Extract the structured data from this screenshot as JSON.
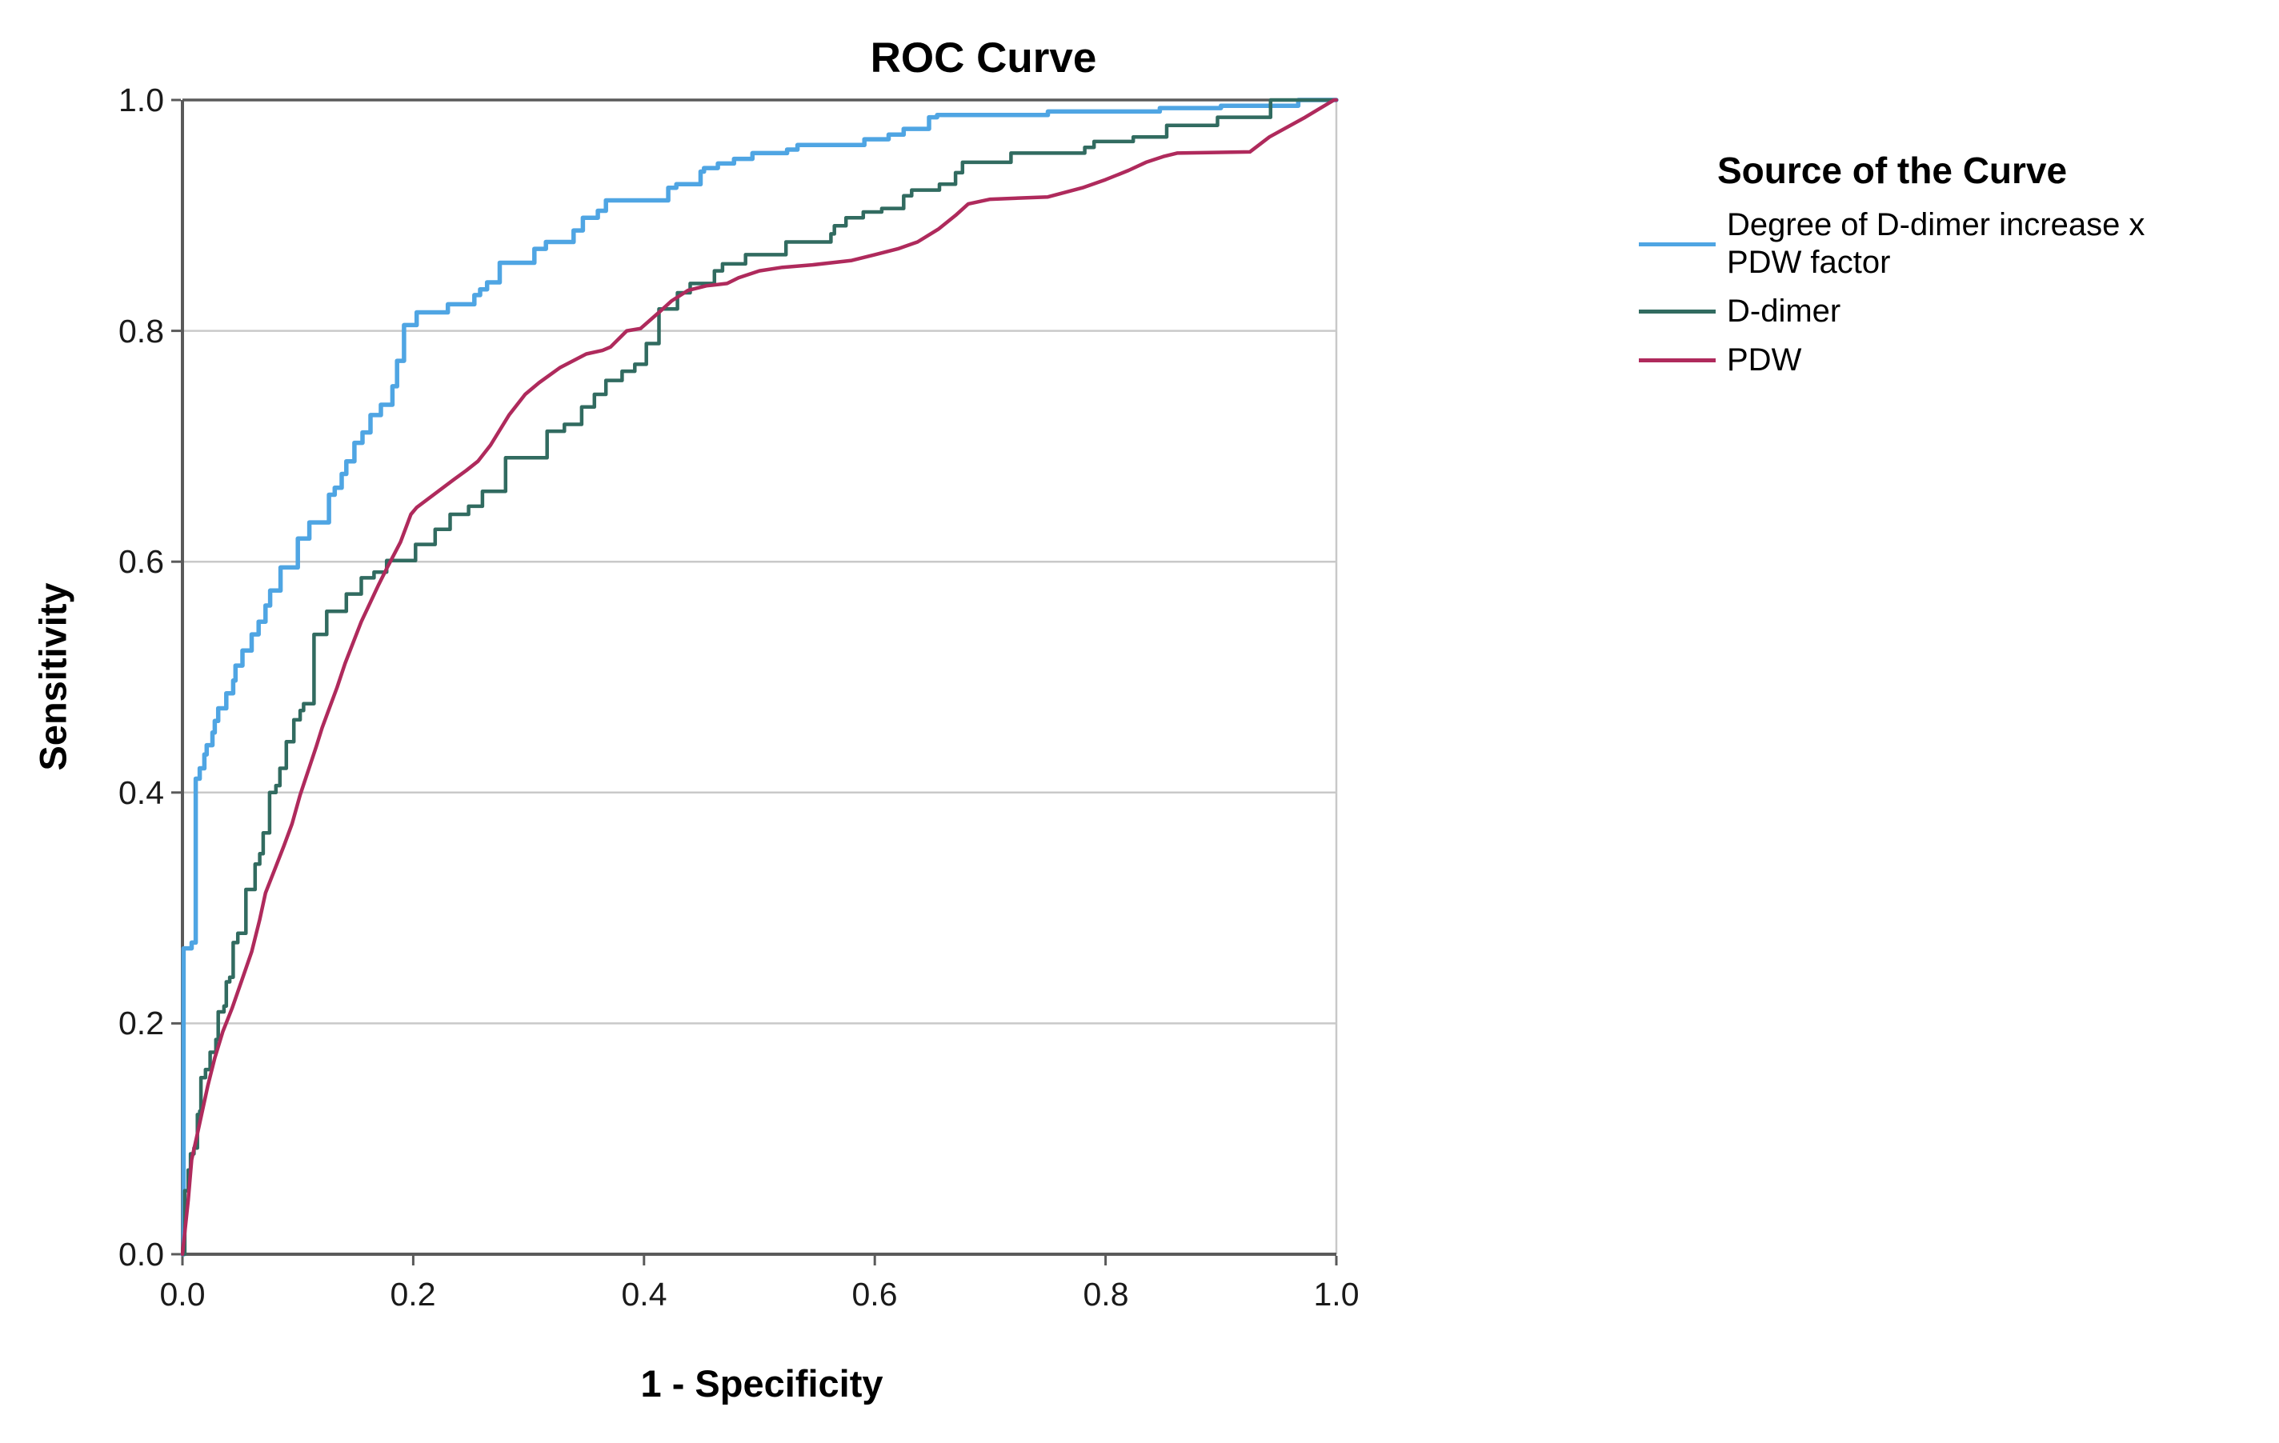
{
  "chart": {
    "title": "ROC Curve"
  },
  "axes": {
    "x": {
      "label": "1 - Specificity",
      "ticks": [
        "0.0",
        "0.2",
        "0.4",
        "0.6",
        "0.8",
        "1.0"
      ],
      "range": [
        0,
        1
      ]
    },
    "y": {
      "label": "Sensitivity",
      "ticks": [
        "0.0",
        "0.2",
        "0.4",
        "0.6",
        "0.8",
        "1.0"
      ],
      "range": [
        0,
        1
      ]
    }
  },
  "legend": {
    "title": "Source of the Curve",
    "items": [
      {
        "key": "degree-of-d-dimer-increase-x-pdw-factor",
        "label": "Degree of D-dimer increase x PDW factor",
        "label_lines": [
          "Degree of D-dimer increase x",
          "PDW factor"
        ],
        "color": "#4FA5E3"
      },
      {
        "key": "d-dimer",
        "label": "D-dimer",
        "label_lines": [
          "D-dimer"
        ],
        "color": "#316B60"
      },
      {
        "key": "pdw",
        "label": "PDW",
        "label_lines": [
          "PDW"
        ],
        "color": "#AF2A5C"
      }
    ]
  },
  "chart_data": {
    "type": "line",
    "subtype": "roc-curve",
    "title": "ROC Curve",
    "xlabel": "1 - Specificity",
    "ylabel": "Sensitivity",
    "xlim": [
      0,
      1
    ],
    "ylim": [
      0,
      1
    ],
    "grid": "horizontal-only",
    "grid_values": [
      0.2,
      0.4,
      0.6,
      0.8
    ],
    "legend_position": "right",
    "style": {
      "axis_color": "#5a5a5a",
      "grid_color": "#c9c9c9",
      "background": "#ffffff"
    },
    "series": [
      {
        "name": "Degree of D-dimer increase x PDW factor",
        "color": "#4FA5E3",
        "draw": "step",
        "stroke_width": 5.5,
        "points": [
          [
            0,
            0
          ],
          [
            0.001,
            0.265
          ],
          [
            0.008,
            0.27
          ],
          [
            0.0115,
            0.412
          ],
          [
            0.015,
            0.421
          ],
          [
            0.019,
            0.433
          ],
          [
            0.021,
            0.441
          ],
          [
            0.026,
            0.452
          ],
          [
            0.028,
            0.462
          ],
          [
            0.031,
            0.473
          ],
          [
            0.038,
            0.486
          ],
          [
            0.044,
            0.497
          ],
          [
            0.046,
            0.51
          ],
          [
            0.052,
            0.523
          ],
          [
            0.06,
            0.537
          ],
          [
            0.066,
            0.548
          ],
          [
            0.072,
            0.562
          ],
          [
            0.076,
            0.575
          ],
          [
            0.085,
            0.595
          ],
          [
            0.1,
            0.62
          ],
          [
            0.11,
            0.634
          ],
          [
            0.127,
            0.658
          ],
          [
            0.132,
            0.664
          ],
          [
            0.138,
            0.676
          ],
          [
            0.142,
            0.687
          ],
          [
            0.149,
            0.703
          ],
          [
            0.156,
            0.712
          ],
          [
            0.163,
            0.727
          ],
          [
            0.172,
            0.736
          ],
          [
            0.182,
            0.752
          ],
          [
            0.186,
            0.774
          ],
          [
            0.192,
            0.805
          ],
          [
            0.203,
            0.816
          ],
          [
            0.23,
            0.823
          ],
          [
            0.253,
            0.831
          ],
          [
            0.258,
            0.836
          ],
          [
            0.264,
            0.842
          ],
          [
            0.275,
            0.859
          ],
          [
            0.305,
            0.871
          ],
          [
            0.315,
            0.877
          ],
          [
            0.339,
            0.887
          ],
          [
            0.347,
            0.898
          ],
          [
            0.36,
            0.904
          ],
          [
            0.367,
            0.913
          ],
          [
            0.421,
            0.924
          ],
          [
            0.428,
            0.927
          ],
          [
            0.449,
            0.938
          ],
          [
            0.452,
            0.941
          ],
          [
            0.464,
            0.945
          ],
          [
            0.478,
            0.949
          ],
          [
            0.494,
            0.954
          ],
          [
            0.524,
            0.957
          ],
          [
            0.533,
            0.961
          ],
          [
            0.591,
            0.966
          ],
          [
            0.612,
            0.97
          ],
          [
            0.625,
            0.975
          ],
          [
            0.647,
            0.985
          ],
          [
            0.654,
            0.987
          ],
          [
            0.75,
            0.99
          ],
          [
            0.847,
            0.993
          ],
          [
            0.9,
            0.995
          ],
          [
            0.967,
            1
          ],
          [
            1,
            1
          ]
        ]
      },
      {
        "name": "D-dimer",
        "color": "#316B60",
        "draw": "step",
        "stroke_width": 4.5,
        "points": [
          [
            0,
            0
          ],
          [
            0.002,
            0.055
          ],
          [
            0.005,
            0.073
          ],
          [
            0.007,
            0.087
          ],
          [
            0.01,
            0.092
          ],
          [
            0.013,
            0.121
          ],
          [
            0.015,
            0.124
          ],
          [
            0.016,
            0.153
          ],
          [
            0.02,
            0.16
          ],
          [
            0.024,
            0.175
          ],
          [
            0.029,
            0.186
          ],
          [
            0.031,
            0.21
          ],
          [
            0.036,
            0.215
          ],
          [
            0.038,
            0.236
          ],
          [
            0.041,
            0.24
          ],
          [
            0.044,
            0.27
          ],
          [
            0.048,
            0.278
          ],
          [
            0.055,
            0.316
          ],
          [
            0.063,
            0.338
          ],
          [
            0.067,
            0.347
          ],
          [
            0.07,
            0.365
          ],
          [
            0.0755,
            0.4
          ],
          [
            0.081,
            0.406
          ],
          [
            0.0845,
            0.421
          ],
          [
            0.09,
            0.444
          ],
          [
            0.0965,
            0.463
          ],
          [
            0.102,
            0.471
          ],
          [
            0.105,
            0.477
          ],
          [
            0.114,
            0.537
          ],
          [
            0.125,
            0.557
          ],
          [
            0.142,
            0.572
          ],
          [
            0.155,
            0.586
          ],
          [
            0.166,
            0.591
          ],
          [
            0.177,
            0.601
          ],
          [
            0.202,
            0.615
          ],
          [
            0.219,
            0.628
          ],
          [
            0.232,
            0.641
          ],
          [
            0.248,
            0.648
          ],
          [
            0.26,
            0.661
          ],
          [
            0.28,
            0.69
          ],
          [
            0.316,
            0.713
          ],
          [
            0.331,
            0.719
          ],
          [
            0.346,
            0.734
          ],
          [
            0.357,
            0.745
          ],
          [
            0.367,
            0.757
          ],
          [
            0.381,
            0.765
          ],
          [
            0.392,
            0.771
          ],
          [
            0.402,
            0.789
          ],
          [
            0.413,
            0.819
          ],
          [
            0.429,
            0.833
          ],
          [
            0.44,
            0.841
          ],
          [
            0.461,
            0.852
          ],
          [
            0.468,
            0.858
          ],
          [
            0.488,
            0.866
          ],
          [
            0.523,
            0.877
          ],
          [
            0.562,
            0.884
          ],
          [
            0.565,
            0.891
          ],
          [
            0.575,
            0.898
          ],
          [
            0.59,
            0.903
          ],
          [
            0.606,
            0.906
          ],
          [
            0.625,
            0.917
          ],
          [
            0.632,
            0.922
          ],
          [
            0.656,
            0.927
          ],
          [
            0.67,
            0.937
          ],
          [
            0.676,
            0.946
          ],
          [
            0.718,
            0.954
          ],
          [
            0.782,
            0.959
          ],
          [
            0.79,
            0.964
          ],
          [
            0.824,
            0.968
          ],
          [
            0.853,
            0.978
          ],
          [
            0.897,
            0.985
          ],
          [
            0.943,
            1
          ],
          [
            1,
            1
          ]
        ]
      },
      {
        "name": "PDW",
        "color": "#AF2A5C",
        "draw": "line",
        "stroke_width": 4.5,
        "points": [
          [
            0,
            0
          ],
          [
            0.005,
            0.047
          ],
          [
            0.008,
            0.082
          ],
          [
            0.012,
            0.1
          ],
          [
            0.017,
            0.123
          ],
          [
            0.022,
            0.146
          ],
          [
            0.028,
            0.17
          ],
          [
            0.035,
            0.193
          ],
          [
            0.043,
            0.213
          ],
          [
            0.051,
            0.236
          ],
          [
            0.06,
            0.262
          ],
          [
            0.067,
            0.29
          ],
          [
            0.072,
            0.313
          ],
          [
            0.081,
            0.336
          ],
          [
            0.088,
            0.354
          ],
          [
            0.095,
            0.373
          ],
          [
            0.102,
            0.398
          ],
          [
            0.109,
            0.419
          ],
          [
            0.116,
            0.44
          ],
          [
            0.121,
            0.456
          ],
          [
            0.128,
            0.475
          ],
          [
            0.134,
            0.491
          ],
          [
            0.141,
            0.512
          ],
          [
            0.148,
            0.53
          ],
          [
            0.155,
            0.548
          ],
          [
            0.163,
            0.565
          ],
          [
            0.17,
            0.58
          ],
          [
            0.177,
            0.594
          ],
          [
            0.189,
            0.617
          ],
          [
            0.198,
            0.641
          ],
          [
            0.203,
            0.647
          ],
          [
            0.219,
            0.659
          ],
          [
            0.235,
            0.671
          ],
          [
            0.246,
            0.679
          ],
          [
            0.256,
            0.687
          ],
          [
            0.267,
            0.701
          ],
          [
            0.283,
            0.727
          ],
          [
            0.297,
            0.745
          ],
          [
            0.309,
            0.755
          ],
          [
            0.327,
            0.768
          ],
          [
            0.35,
            0.78
          ],
          [
            0.364,
            0.783
          ],
          [
            0.371,
            0.786
          ],
          [
            0.385,
            0.8
          ],
          [
            0.397,
            0.802
          ],
          [
            0.413,
            0.816
          ],
          [
            0.424,
            0.826
          ],
          [
            0.438,
            0.835
          ],
          [
            0.454,
            0.839
          ],
          [
            0.472,
            0.841
          ],
          [
            0.482,
            0.846
          ],
          [
            0.5,
            0.852
          ],
          [
            0.52,
            0.855
          ],
          [
            0.545,
            0.857
          ],
          [
            0.58,
            0.861
          ],
          [
            0.6,
            0.866
          ],
          [
            0.62,
            0.871
          ],
          [
            0.637,
            0.877
          ],
          [
            0.655,
            0.888
          ],
          [
            0.67,
            0.9
          ],
          [
            0.681,
            0.91
          ],
          [
            0.7,
            0.914
          ],
          [
            0.75,
            0.916
          ],
          [
            0.78,
            0.924
          ],
          [
            0.8,
            0.931
          ],
          [
            0.82,
            0.939
          ],
          [
            0.835,
            0.946
          ],
          [
            0.85,
            0.951
          ],
          [
            0.862,
            0.954
          ],
          [
            0.925,
            0.955
          ],
          [
            0.942,
            0.968
          ],
          [
            0.973,
            0.985
          ],
          [
            0.998,
            1
          ],
          [
            1,
            1
          ]
        ]
      }
    ]
  }
}
